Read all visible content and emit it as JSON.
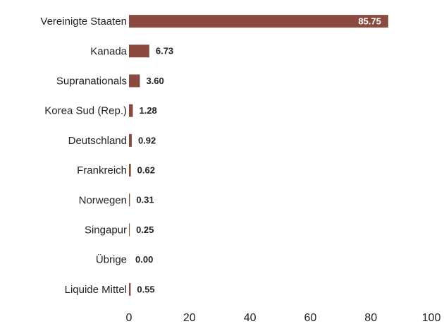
{
  "chart_data": {
    "type": "bar",
    "orientation": "horizontal",
    "categories": [
      "Vereinigte Staaten",
      "Kanada",
      "Supranationals",
      "Korea Sud (Rep.)",
      "Deutschland",
      "Frankreich",
      "Norwegen",
      "Singapur",
      "Übrige",
      "Liquide Mittel"
    ],
    "values": [
      85.75,
      6.73,
      3.6,
      1.28,
      0.92,
      0.62,
      0.31,
      0.25,
      0,
      0.55
    ],
    "value_labels": [
      "85.75",
      "6.73",
      "3.60",
      "1.28",
      "0.92",
      "0.62",
      "0.31",
      "0.25",
      "0.00",
      "0.55"
    ],
    "color": "#8b4a40",
    "xlim": [
      0,
      100
    ],
    "xticks": [
      0,
      20,
      40,
      60,
      80,
      100
    ],
    "grid": false
  }
}
